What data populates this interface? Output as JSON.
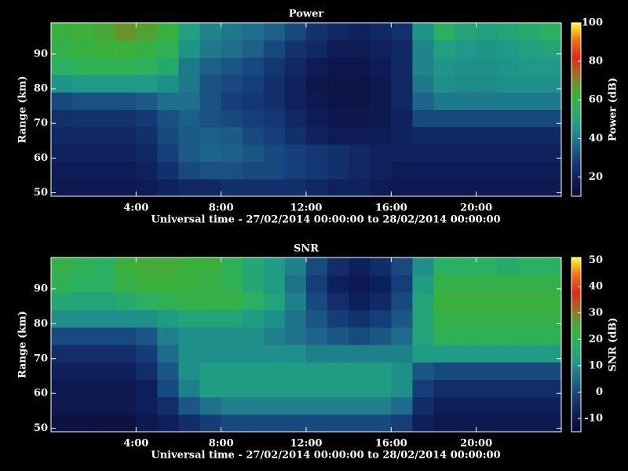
{
  "chart_data": [
    {
      "type": "heatmap",
      "title": "Power",
      "xlabel": "Universal time - 27/02/2014 00:00:00 to 28/02/2014 00:00:00",
      "ylabel": "Range (km)",
      "colorbar_label": "Power (dB)",
      "x": [
        0.5,
        1.5,
        2.5,
        3.5,
        4.5,
        5.5,
        6.5,
        7.5,
        8.5,
        9.5,
        10.5,
        11.5,
        12.5,
        13.5,
        14.5,
        15.5,
        16.5,
        17.5,
        18.5,
        19.5,
        20.5,
        21.5,
        22.5,
        23.5
      ],
      "y": [
        51.5,
        56.5,
        61.5,
        66.5,
        71.5,
        76.5,
        81.5,
        86.5,
        91.5,
        96.5
      ],
      "z": [
        [
          17,
          17,
          17,
          17,
          18,
          20,
          22,
          22,
          24,
          24,
          24,
          24,
          22,
          20,
          20,
          18,
          17,
          17,
          17,
          17,
          17,
          17,
          17,
          17
        ],
        [
          18,
          18,
          18,
          18,
          20,
          24,
          30,
          32,
          32,
          30,
          30,
          28,
          26,
          24,
          22,
          20,
          18,
          18,
          18,
          18,
          18,
          18,
          18,
          18
        ],
        [
          20,
          20,
          20,
          20,
          22,
          28,
          34,
          36,
          35,
          33,
          30,
          28,
          26,
          24,
          22,
          20,
          20,
          20,
          20,
          20,
          20,
          20,
          20,
          20
        ],
        [
          22,
          22,
          22,
          22,
          24,
          30,
          34,
          35,
          34,
          30,
          28,
          24,
          20,
          18,
          18,
          18,
          20,
          22,
          22,
          22,
          22,
          22,
          22,
          22
        ],
        [
          24,
          25,
          25,
          25,
          27,
          32,
          35,
          32,
          30,
          28,
          26,
          22,
          18,
          16,
          16,
          17,
          20,
          30,
          30,
          30,
          30,
          30,
          30,
          30
        ],
        [
          30,
          32,
          32,
          32,
          34,
          38,
          38,
          32,
          28,
          26,
          24,
          20,
          17,
          15,
          15,
          17,
          22,
          36,
          40,
          40,
          40,
          40,
          40,
          40
        ],
        [
          45,
          46,
          46,
          46,
          46,
          44,
          40,
          32,
          30,
          28,
          24,
          20,
          16,
          15,
          15,
          17,
          22,
          40,
          44,
          43,
          43,
          44,
          44,
          44
        ],
        [
          55,
          57,
          58,
          58,
          56,
          52,
          40,
          35,
          33,
          30,
          26,
          22,
          18,
          16,
          16,
          18,
          22,
          42,
          45,
          44,
          44,
          45,
          46,
          46
        ],
        [
          60,
          62,
          63,
          64,
          62,
          58,
          45,
          40,
          38,
          35,
          30,
          25,
          22,
          18,
          18,
          20,
          22,
          42,
          48,
          46,
          45,
          46,
          48,
          50
        ],
        [
          62,
          64,
          65,
          68,
          66,
          62,
          48,
          42,
          40,
          38,
          35,
          30,
          25,
          22,
          20,
          22,
          24,
          45,
          55,
          50,
          48,
          50,
          52,
          55
        ]
      ],
      "xlim": [
        0,
        24
      ],
      "ylim": [
        49,
        99
      ],
      "xticks": [
        {
          "value": 4,
          "label": "4:00"
        },
        {
          "value": 8,
          "label": "8:00"
        },
        {
          "value": 12,
          "label": "12:00"
        },
        {
          "value": 16,
          "label": "16:00"
        },
        {
          "value": 20,
          "label": "20:00"
        }
      ],
      "yticks": [
        50,
        60,
        70,
        80,
        90
      ],
      "zlim": [
        10,
        100
      ],
      "zticks": [
        20,
        40,
        60,
        80,
        100
      ],
      "colormap": [
        "#0a0a30",
        "#0e1e5a",
        "#153e7a",
        "#1e6a8c",
        "#1f9a88",
        "#2ab060",
        "#3cb038",
        "#a07020",
        "#e02a18",
        "#f07010",
        "#ffff30"
      ]
    },
    {
      "type": "heatmap",
      "title": "SNR",
      "xlabel": "Universal time - 27/02/2014 00:00:00 to 28/02/2014 00:00:00",
      "ylabel": "Range (km)",
      "colorbar_label": "SNR (dB)",
      "x": [
        0.5,
        1.5,
        2.5,
        3.5,
        4.5,
        5.5,
        6.5,
        7.5,
        8.5,
        9.5,
        10.5,
        11.5,
        12.5,
        13.5,
        14.5,
        15.5,
        16.5,
        17.5,
        18.5,
        19.5,
        20.5,
        21.5,
        22.5,
        23.5
      ],
      "y": [
        51.5,
        56.5,
        61.5,
        66.5,
        71.5,
        76.5,
        81.5,
        86.5,
        91.5,
        96.5
      ],
      "z": [
        [
          -12,
          -12,
          -12,
          -12,
          -10,
          -8,
          -5,
          -2,
          0,
          0,
          0,
          0,
          0,
          0,
          0,
          0,
          -2,
          -8,
          -10,
          -10,
          -10,
          -10,
          -10,
          -10
        ],
        [
          -10,
          -10,
          -10,
          -10,
          -8,
          -5,
          2,
          6,
          8,
          8,
          8,
          8,
          8,
          8,
          8,
          8,
          5,
          -5,
          -8,
          -8,
          -8,
          -8,
          -8,
          -8
        ],
        [
          -10,
          -10,
          -10,
          -10,
          -8,
          0,
          8,
          12,
          12,
          12,
          12,
          12,
          12,
          12,
          12,
          12,
          10,
          -2,
          -5,
          -5,
          -5,
          -5,
          -5,
          -5
        ],
        [
          -8,
          -8,
          -8,
          -8,
          -5,
          2,
          10,
          12,
          12,
          12,
          12,
          12,
          12,
          12,
          12,
          12,
          10,
          2,
          0,
          0,
          0,
          0,
          0,
          0
        ],
        [
          -5,
          -5,
          -5,
          -5,
          -2,
          5,
          10,
          10,
          10,
          10,
          10,
          10,
          8,
          8,
          8,
          8,
          8,
          12,
          12,
          12,
          12,
          12,
          12,
          12
        ],
        [
          0,
          0,
          0,
          0,
          2,
          8,
          10,
          10,
          10,
          10,
          8,
          6,
          4,
          2,
          0,
          2,
          5,
          14,
          20,
          20,
          20,
          20,
          20,
          20
        ],
        [
          10,
          10,
          10,
          10,
          10,
          12,
          14,
          14,
          14,
          12,
          10,
          6,
          2,
          -2,
          -4,
          -2,
          2,
          14,
          22,
          22,
          22,
          22,
          22,
          22
        ],
        [
          15,
          14,
          14,
          16,
          18,
          20,
          22,
          22,
          22,
          18,
          14,
          8,
          0,
          -5,
          -8,
          -6,
          0,
          14,
          24,
          24,
          24,
          24,
          24,
          24
        ],
        [
          20,
          18,
          18,
          22,
          24,
          24,
          24,
          22,
          20,
          15,
          12,
          6,
          -2,
          -8,
          -10,
          -8,
          -2,
          12,
          22,
          22,
          22,
          22,
          22,
          22
        ],
        [
          22,
          20,
          18,
          24,
          25,
          25,
          24,
          24,
          20,
          15,
          12,
          8,
          0,
          -5,
          -8,
          -5,
          0,
          10,
          18,
          18,
          18,
          16,
          18,
          18
        ]
      ],
      "xlim": [
        0,
        24
      ],
      "ylim": [
        49,
        99
      ],
      "xticks": [
        {
          "value": 4,
          "label": "4:00"
        },
        {
          "value": 8,
          "label": "8:00"
        },
        {
          "value": 12,
          "label": "12:00"
        },
        {
          "value": 16,
          "label": "16:00"
        },
        {
          "value": 20,
          "label": "20:00"
        }
      ],
      "yticks": [
        50,
        60,
        70,
        80,
        90
      ],
      "zlim": [
        -15,
        51
      ],
      "zticks": [
        -10,
        0,
        10,
        20,
        30,
        40,
        50
      ],
      "colormap": [
        "#0a0a30",
        "#0e1e5a",
        "#153e7a",
        "#1e6a8c",
        "#1f9a88",
        "#2ab060",
        "#3cb038",
        "#a07020",
        "#e02a18",
        "#f07010",
        "#ffff30"
      ]
    }
  ]
}
